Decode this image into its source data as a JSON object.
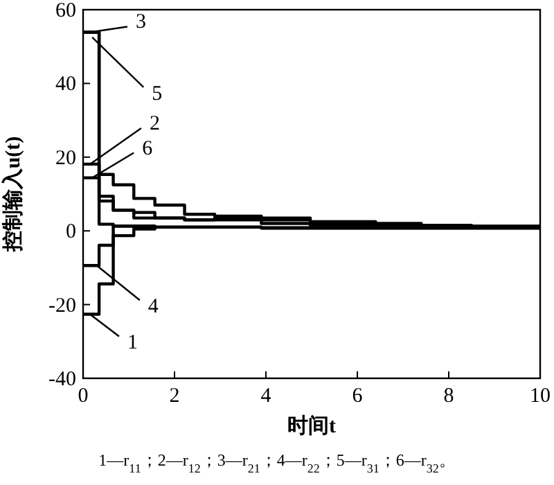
{
  "chart_data": {
    "type": "step",
    "xlabel": "时间t",
    "ylabel": "控制输入u(t)",
    "xlim": [
      0,
      10
    ],
    "ylim": [
      -40,
      60
    ],
    "xticks": [
      0,
      2,
      4,
      6,
      8,
      10
    ],
    "yticks": [
      -40,
      -20,
      0,
      20,
      40,
      60
    ],
    "series": [
      {
        "color": "#000000",
        "x": [
          0,
          0.35,
          0.66,
          1.11,
          1.57,
          2.22,
          2.88,
          3.9,
          4.97,
          6.4,
          7.4,
          8.5,
          10
        ],
        "values": [
          -22.6,
          -14.4,
          1.3,
          1.0,
          1.0,
          1.0,
          1.0,
          0.8,
          0.8,
          0.8,
          0.8,
          0.8,
          0.8
        ]
      },
      {
        "color": "#000000",
        "x": [
          0,
          0.35,
          0.66,
          1.11,
          1.57,
          2.22,
          2.88,
          3.9,
          4.97,
          6.4,
          7.4,
          8.5,
          10
        ],
        "values": [
          18.1,
          9.4,
          5.6,
          5.0,
          3.5,
          3.0,
          3.0,
          2.0,
          1.5,
          1.5,
          1.2,
          1.2,
          1.2
        ]
      },
      {
        "color": "#000000",
        "x": [
          0,
          0.35,
          0.66,
          1.11,
          1.57,
          2.22,
          2.88,
          3.9,
          4.97,
          6.4,
          7.4,
          8.5,
          10
        ],
        "values": [
          53.9,
          15.3,
          12.5,
          8.8,
          7.0,
          4.5,
          4.0,
          3.5,
          2.5,
          2.0,
          1.5,
          1.2,
          1.2
        ]
      },
      {
        "color": "#000000",
        "x": [
          0,
          0.35,
          0.66,
          1.11,
          1.57,
          2.22,
          2.88,
          3.9,
          4.97,
          6.4,
          7.4,
          8.5,
          10
        ],
        "values": [
          -9.4,
          -3.9,
          -1.3,
          0.5,
          1.0,
          1.0,
          1.0,
          0.8,
          0.8,
          0.8,
          0.8,
          0.8,
          0.8
        ]
      },
      {
        "color": "#000000",
        "x": [
          0,
          0.35,
          0.66,
          1.11,
          1.57,
          2.22,
          2.88,
          3.9,
          4.97,
          6.4,
          7.4,
          8.5,
          10
        ],
        "values": [
          53.9,
          8.1,
          5.6,
          3.5,
          3.5,
          3.0,
          3.5,
          3.0,
          2.0,
          1.5,
          1.2,
          1.2,
          1.2
        ]
      },
      {
        "color": "#000000",
        "x": [
          0,
          0.35,
          0.66,
          1.11,
          1.57,
          2.22,
          2.88,
          3.9,
          4.97,
          6.4,
          7.4,
          8.5,
          10
        ],
        "values": [
          14.4,
          1.8,
          1.3,
          1.3,
          1.0,
          1.0,
          1.0,
          0.8,
          0.8,
          0.8,
          0.8,
          0.8,
          0.8
        ]
      }
    ],
    "annotations": [
      {
        "text": "1",
        "x": 0.15,
        "y": -22.6
      },
      {
        "text": "2",
        "x": 0.15,
        "y": 18.1
      },
      {
        "text": "3",
        "x": 0.15,
        "y": 53.9
      },
      {
        "text": "4",
        "x": 0.3,
        "y": -9.4
      },
      {
        "text": "5",
        "x": 0.2,
        "y": 52.5
      },
      {
        "text": "6",
        "x": 0.2,
        "y": 14.4
      },
      "1—r$_{11}$；2—r$_{12}$；3—r$_{21}$；4—r$_{22}$；5—r$_{31}$；6—r$_{32}$。"
    ]
  }
}
